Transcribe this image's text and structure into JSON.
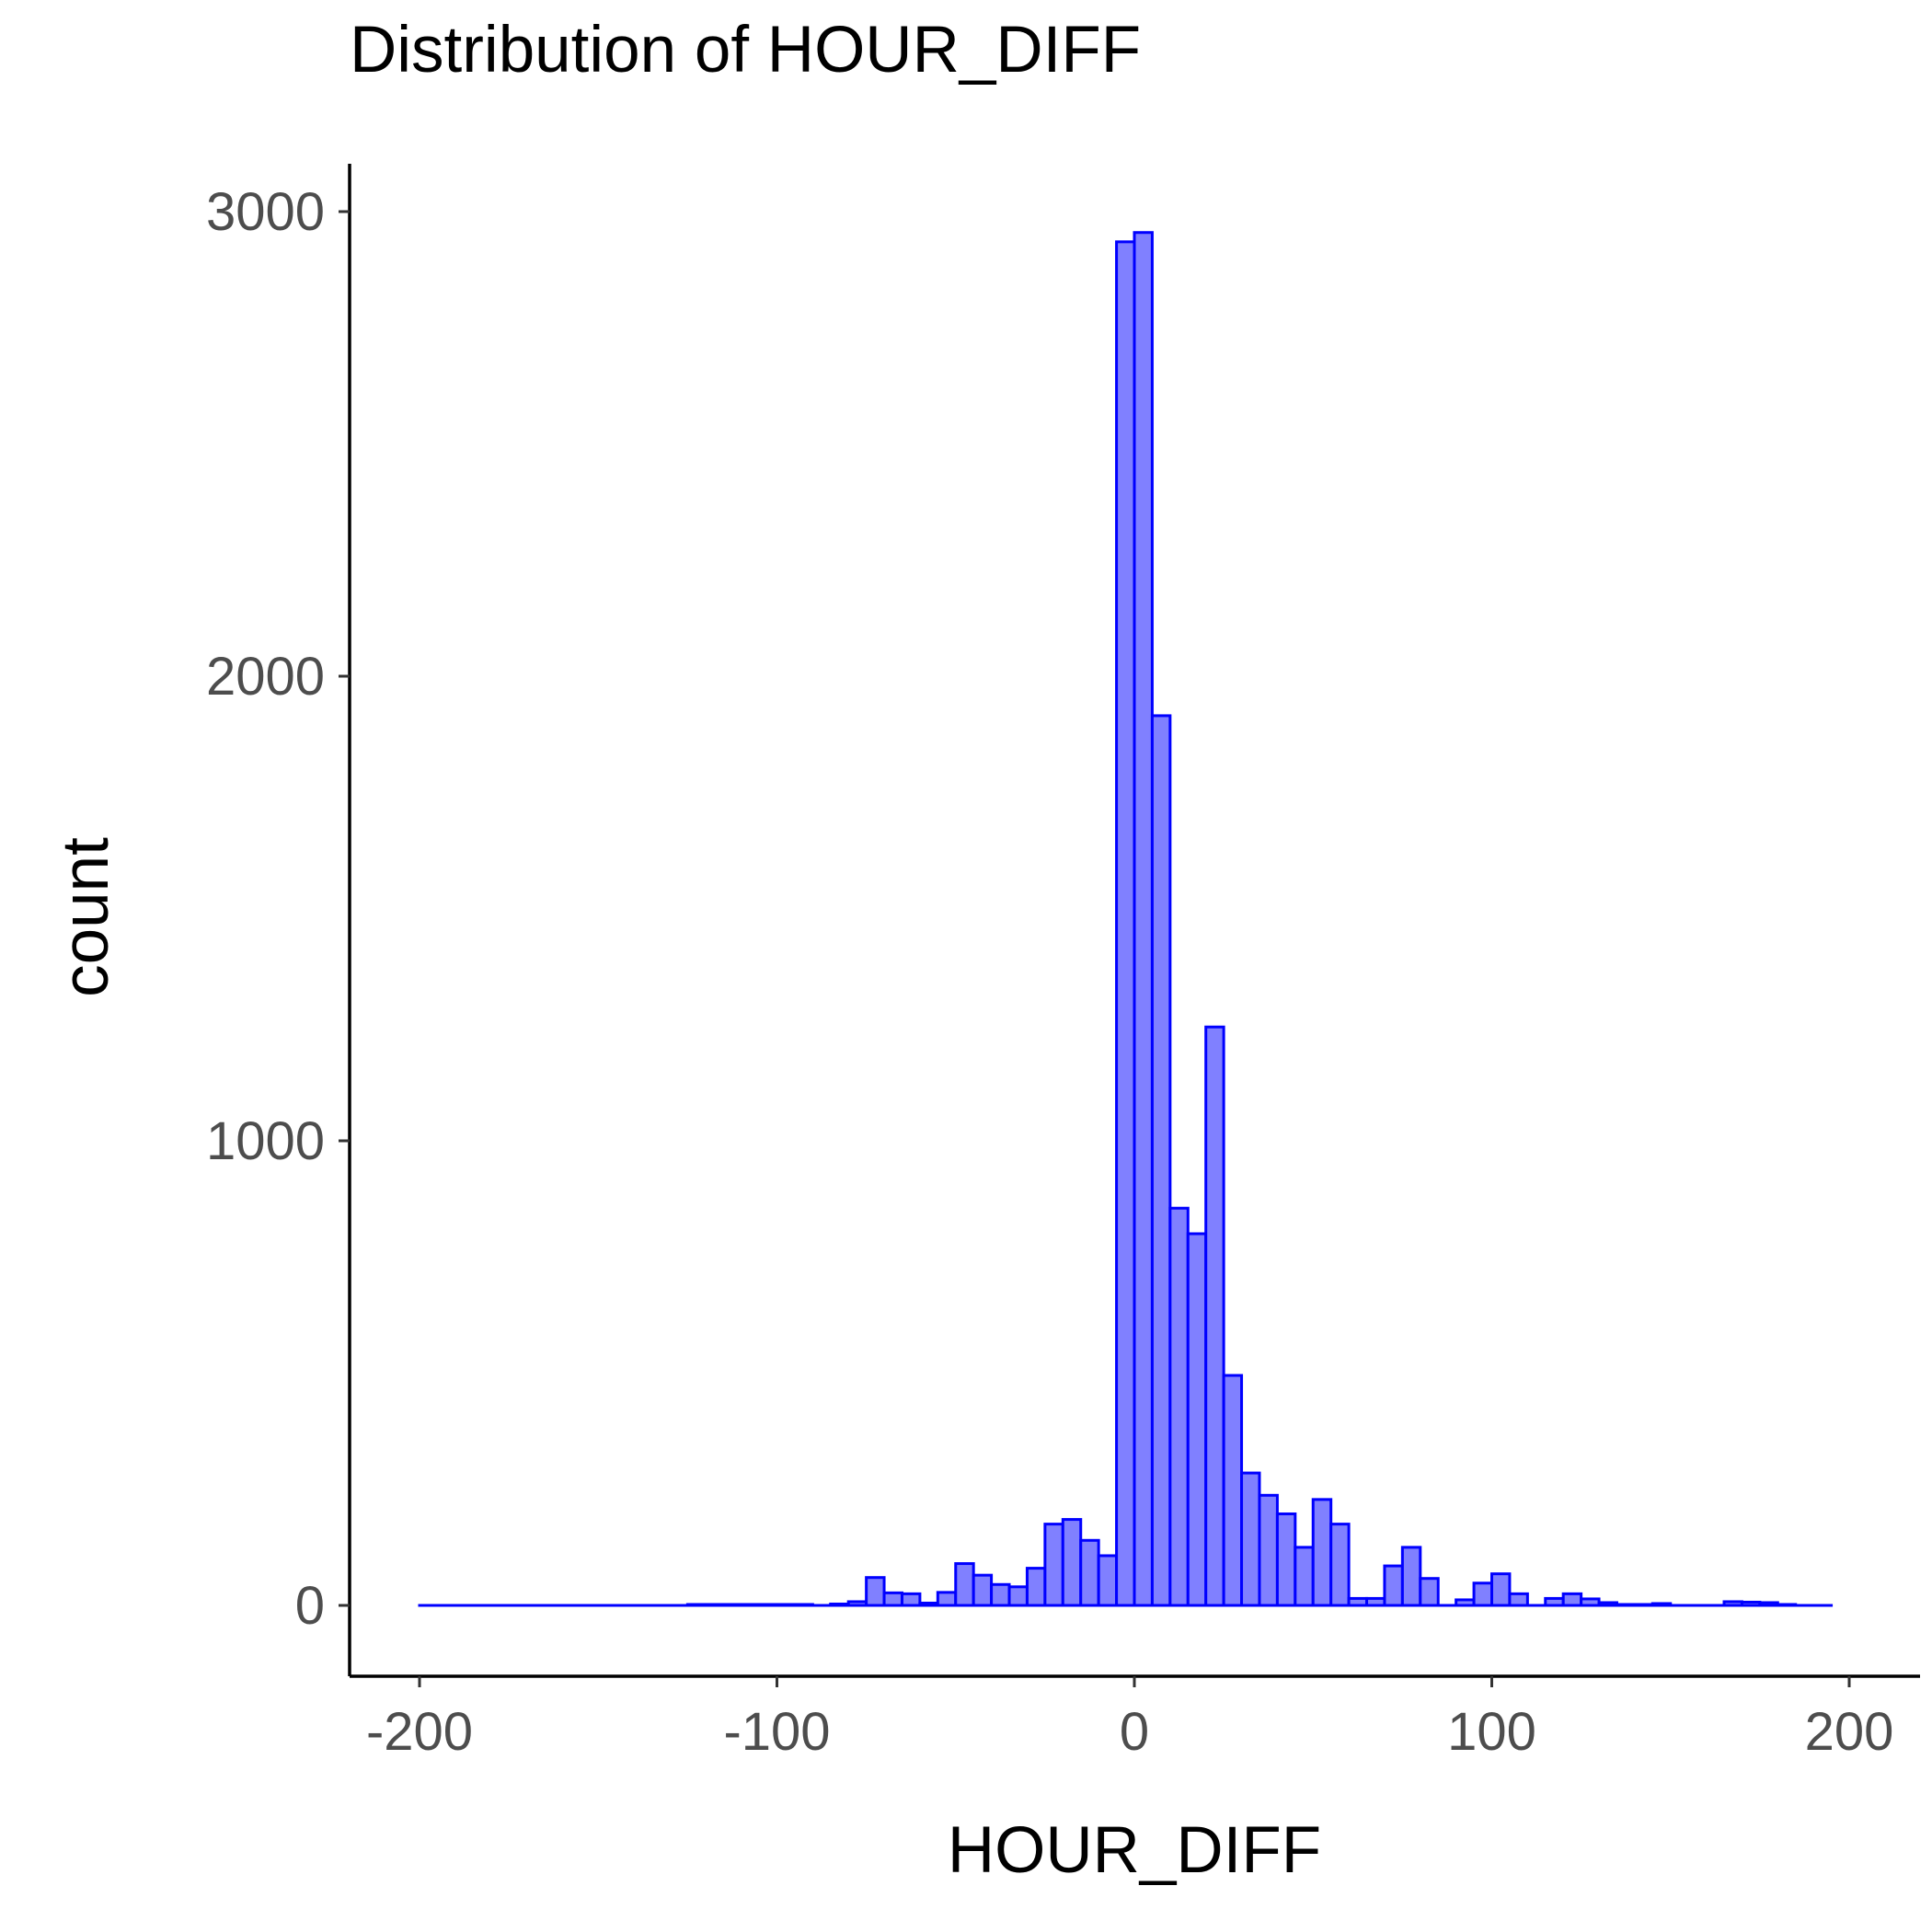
{
  "chart_data": {
    "type": "histogram",
    "title": "Distribution of HOUR_DIFF",
    "xlabel": "HOUR_DIFF",
    "ylabel": "count",
    "xlim": [
      -220,
      220
    ],
    "ylim": [
      -70,
      3100
    ],
    "x_ticks": [
      {
        "value": -200,
        "label": "-200"
      },
      {
        "value": -100,
        "label": "-100"
      },
      {
        "value": 0,
        "label": "0"
      },
      {
        "value": 100,
        "label": "100"
      },
      {
        "value": 200,
        "label": "200"
      }
    ],
    "y_ticks": [
      {
        "value": 0,
        "label": "0"
      },
      {
        "value": 1000,
        "label": "1000"
      },
      {
        "value": 2000,
        "label": "2000"
      },
      {
        "value": 3000,
        "label": "3000"
      }
    ],
    "bin_width": 5,
    "bins": [
      {
        "start": -200,
        "count": 0
      },
      {
        "start": -195,
        "count": 0
      },
      {
        "start": -190,
        "count": 0
      },
      {
        "start": -185,
        "count": 0
      },
      {
        "start": -180,
        "count": 0
      },
      {
        "start": -175,
        "count": 0
      },
      {
        "start": -170,
        "count": 0
      },
      {
        "start": -165,
        "count": 0
      },
      {
        "start": -160,
        "count": 0
      },
      {
        "start": -155,
        "count": 0
      },
      {
        "start": -150,
        "count": 0
      },
      {
        "start": -145,
        "count": 0
      },
      {
        "start": -140,
        "count": 0
      },
      {
        "start": -135,
        "count": 0
      },
      {
        "start": -130,
        "count": 0
      },
      {
        "start": -125,
        "count": 2
      },
      {
        "start": -120,
        "count": 2
      },
      {
        "start": -115,
        "count": 2
      },
      {
        "start": -110,
        "count": 2
      },
      {
        "start": -105,
        "count": 2
      },
      {
        "start": -100,
        "count": 2
      },
      {
        "start": -95,
        "count": 2
      },
      {
        "start": -90,
        "count": 0
      },
      {
        "start": -85,
        "count": 3
      },
      {
        "start": -80,
        "count": 8
      },
      {
        "start": -75,
        "count": 60
      },
      {
        "start": -70,
        "count": 27
      },
      {
        "start": -65,
        "count": 25
      },
      {
        "start": -60,
        "count": 5
      },
      {
        "start": -55,
        "count": 28
      },
      {
        "start": -50,
        "count": 90
      },
      {
        "start": -45,
        "count": 65
      },
      {
        "start": -40,
        "count": 45
      },
      {
        "start": -35,
        "count": 40
      },
      {
        "start": -30,
        "count": 80
      },
      {
        "start": -25,
        "count": 175
      },
      {
        "start": -20,
        "count": 185
      },
      {
        "start": -15,
        "count": 140
      },
      {
        "start": -10,
        "count": 107
      },
      {
        "start": -5,
        "count": 2935
      },
      {
        "start": 0,
        "count": 2955
      },
      {
        "start": 5,
        "count": 1915
      },
      {
        "start": 10,
        "count": 855
      },
      {
        "start": 15,
        "count": 800
      },
      {
        "start": 20,
        "count": 1245
      },
      {
        "start": 25,
        "count": 495
      },
      {
        "start": 30,
        "count": 285
      },
      {
        "start": 35,
        "count": 237
      },
      {
        "start": 40,
        "count": 197
      },
      {
        "start": 45,
        "count": 125
      },
      {
        "start": 50,
        "count": 228
      },
      {
        "start": 55,
        "count": 175
      },
      {
        "start": 60,
        "count": 15
      },
      {
        "start": 65,
        "count": 15
      },
      {
        "start": 70,
        "count": 85
      },
      {
        "start": 75,
        "count": 125
      },
      {
        "start": 80,
        "count": 58
      },
      {
        "start": 85,
        "count": 0
      },
      {
        "start": 90,
        "count": 12
      },
      {
        "start": 95,
        "count": 48
      },
      {
        "start": 100,
        "count": 68
      },
      {
        "start": 105,
        "count": 25
      },
      {
        "start": 110,
        "count": 0
      },
      {
        "start": 115,
        "count": 15
      },
      {
        "start": 120,
        "count": 25
      },
      {
        "start": 125,
        "count": 14
      },
      {
        "start": 130,
        "count": 6
      },
      {
        "start": 135,
        "count": 2
      },
      {
        "start": 140,
        "count": 2
      },
      {
        "start": 145,
        "count": 4
      },
      {
        "start": 150,
        "count": 0
      },
      {
        "start": 155,
        "count": 0
      },
      {
        "start": 160,
        "count": 0
      },
      {
        "start": 165,
        "count": 8
      },
      {
        "start": 170,
        "count": 7
      },
      {
        "start": 175,
        "count": 6
      },
      {
        "start": 180,
        "count": 2
      },
      {
        "start": 185,
        "count": 0
      },
      {
        "start": 190,
        "count": 0
      }
    ],
    "grid": false,
    "legend": "none",
    "colors": {
      "bar_fill": "#8080ff",
      "bar_stroke": "#0000ff"
    }
  }
}
